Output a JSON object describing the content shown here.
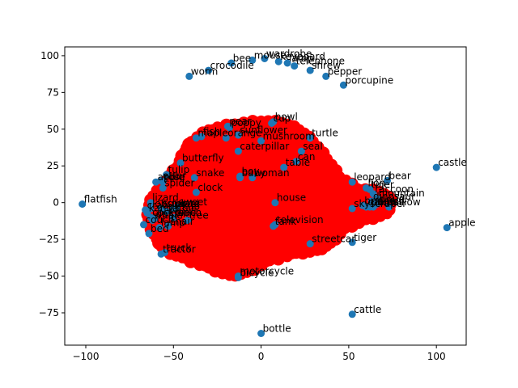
{
  "chart_data": {
    "type": "scatter",
    "title": "",
    "xlabel": "",
    "ylabel": "",
    "xlim": [
      -112,
      117
    ],
    "ylim": [
      -97,
      106
    ],
    "xticks": [
      -100,
      -50,
      0,
      50,
      100
    ],
    "yticks": [
      -75,
      -50,
      -25,
      0,
      25,
      50,
      75,
      100
    ],
    "grid": false,
    "colors": {
      "points": "#1f77b4",
      "cloud": "#ff0000",
      "axes": "#000000"
    },
    "points": [
      {
        "label": "wardrobe",
        "x": 2,
        "y": 98
      },
      {
        "label": "bee",
        "x": -17,
        "y": 95
      },
      {
        "label": "mouse",
        "x": -5,
        "y": 97
      },
      {
        "label": "keyboard",
        "x": 10,
        "y": 96
      },
      {
        "label": "lamp",
        "x": 15,
        "y": 95
      },
      {
        "label": "telephone",
        "x": 19,
        "y": 93
      },
      {
        "label": "crocodile",
        "x": -30,
        "y": 90
      },
      {
        "label": "shrew",
        "x": 28,
        "y": 90
      },
      {
        "label": "worm",
        "x": -41,
        "y": 86
      },
      {
        "label": "pepper",
        "x": 37,
        "y": 86
      },
      {
        "label": "porcupine",
        "x": 47,
        "y": 80
      },
      {
        "label": "bowl",
        "x": 7,
        "y": 55
      },
      {
        "label": "cup",
        "x": 6,
        "y": 54
      },
      {
        "label": "poppy",
        "x": -18,
        "y": 51
      },
      {
        "label": "pear",
        "x": -19,
        "y": 52
      },
      {
        "label": "sunflower",
        "x": -13,
        "y": 46
      },
      {
        "label": "fish",
        "x": -34,
        "y": 45
      },
      {
        "label": "maple",
        "x": -37,
        "y": 44
      },
      {
        "label": "orange",
        "x": -20,
        "y": 44
      },
      {
        "label": "mushroom",
        "x": 0,
        "y": 42
      },
      {
        "label": "turtle",
        "x": 28,
        "y": 44
      },
      {
        "label": "caterpillar",
        "x": -13,
        "y": 35
      },
      {
        "label": "seal",
        "x": 23,
        "y": 35
      },
      {
        "label": "can",
        "x": 20,
        "y": 28
      },
      {
        "label": "table",
        "x": 13,
        "y": 24
      },
      {
        "label": "butterfly",
        "x": -46,
        "y": 27
      },
      {
        "label": "castle",
        "x": 100,
        "y": 24
      },
      {
        "label": "tulip",
        "x": -54,
        "y": 19
      },
      {
        "label": "snake",
        "x": -38,
        "y": 17
      },
      {
        "label": "baby",
        "x": -12,
        "y": 17
      },
      {
        "label": "woman",
        "x": -5,
        "y": 17
      },
      {
        "label": "boy",
        "x": -12,
        "y": 18
      },
      {
        "label": "otter",
        "x": -57,
        "y": 15
      },
      {
        "label": "apple",
        "x": -60,
        "y": 14
      },
      {
        "label": "rose",
        "x": -56,
        "y": 14
      },
      {
        "label": "leopard",
        "x": 52,
        "y": 14
      },
      {
        "label": "bear",
        "x": 72,
        "y": 15
      },
      {
        "label": "spider",
        "x": -56,
        "y": 10
      },
      {
        "label": "clock",
        "x": -37,
        "y": 7
      },
      {
        "label": "lion",
        "x": 60,
        "y": 10
      },
      {
        "label": "tiger",
        "x": 62,
        "y": 9
      },
      {
        "label": "raccoon",
        "x": 64,
        "y": 6
      },
      {
        "label": "mountain",
        "x": 66,
        "y": 3
      },
      {
        "label": "dinosaur",
        "x": 63,
        "y": 1
      },
      {
        "label": "cloud",
        "x": 66,
        "y": -1
      },
      {
        "label": "flatfish",
        "x": -102,
        "y": -1
      },
      {
        "label": "lizard",
        "x": -63,
        "y": 0
      },
      {
        "label": "house",
        "x": 8,
        "y": 0
      },
      {
        "label": "lobster",
        "x": -63,
        "y": -4
      },
      {
        "label": "crab",
        "x": -66,
        "y": -5
      },
      {
        "label": "squirrel",
        "x": -57,
        "y": -4
      },
      {
        "label": "kangaroo",
        "x": -65,
        "y": -7
      },
      {
        "label": "plate",
        "x": -50,
        "y": -4
      },
      {
        "label": "sweet",
        "x": -48,
        "y": -3
      },
      {
        "label": "pickup",
        "x": -54,
        "y": -6
      },
      {
        "label": "skyscraper",
        "x": 52,
        "y": -4
      },
      {
        "label": "willow",
        "x": 73,
        "y": -3
      },
      {
        "label": "palm",
        "x": 62,
        "y": -3
      },
      {
        "label": "oak",
        "x": 60,
        "y": -3
      },
      {
        "label": "forest",
        "x": 64,
        "y": -3
      },
      {
        "label": "bridge",
        "x": 58,
        "y": -2
      },
      {
        "label": "cockroach",
        "x": -63,
        "y": -10
      },
      {
        "label": "dolphin",
        "x": -61,
        "y": -11
      },
      {
        "label": "whale",
        "x": -62,
        "y": -12
      },
      {
        "label": "pine",
        "x": -50,
        "y": -10
      },
      {
        "label": "tree",
        "x": -42,
        "y": -12
      },
      {
        "label": "couch",
        "x": -67,
        "y": -15
      },
      {
        "label": "bed",
        "x": -64,
        "y": -21
      },
      {
        "label": "chair",
        "x": -53,
        "y": -16
      },
      {
        "label": "lamp",
        "x": -58,
        "y": -17
      },
      {
        "label": "television",
        "x": 8,
        "y": -15
      },
      {
        "label": "tank",
        "x": 7,
        "y": -16
      },
      {
        "label": "streetcar",
        "x": 28,
        "y": -28
      },
      {
        "label": "tiger",
        "x": 52,
        "y": -27
      },
      {
        "label": "tractor",
        "x": -57,
        "y": -35
      },
      {
        "label": "truck",
        "x": -55,
        "y": -34
      },
      {
        "label": "motorcycle",
        "x": -13,
        "y": -50
      },
      {
        "label": "bicycle",
        "x": -13,
        "y": -51
      },
      {
        "label": "apple",
        "x": 106,
        "y": -17
      },
      {
        "label": "cattle",
        "x": 52,
        "y": -76
      },
      {
        "label": "bottle",
        "x": 0,
        "y": -89
      }
    ]
  }
}
